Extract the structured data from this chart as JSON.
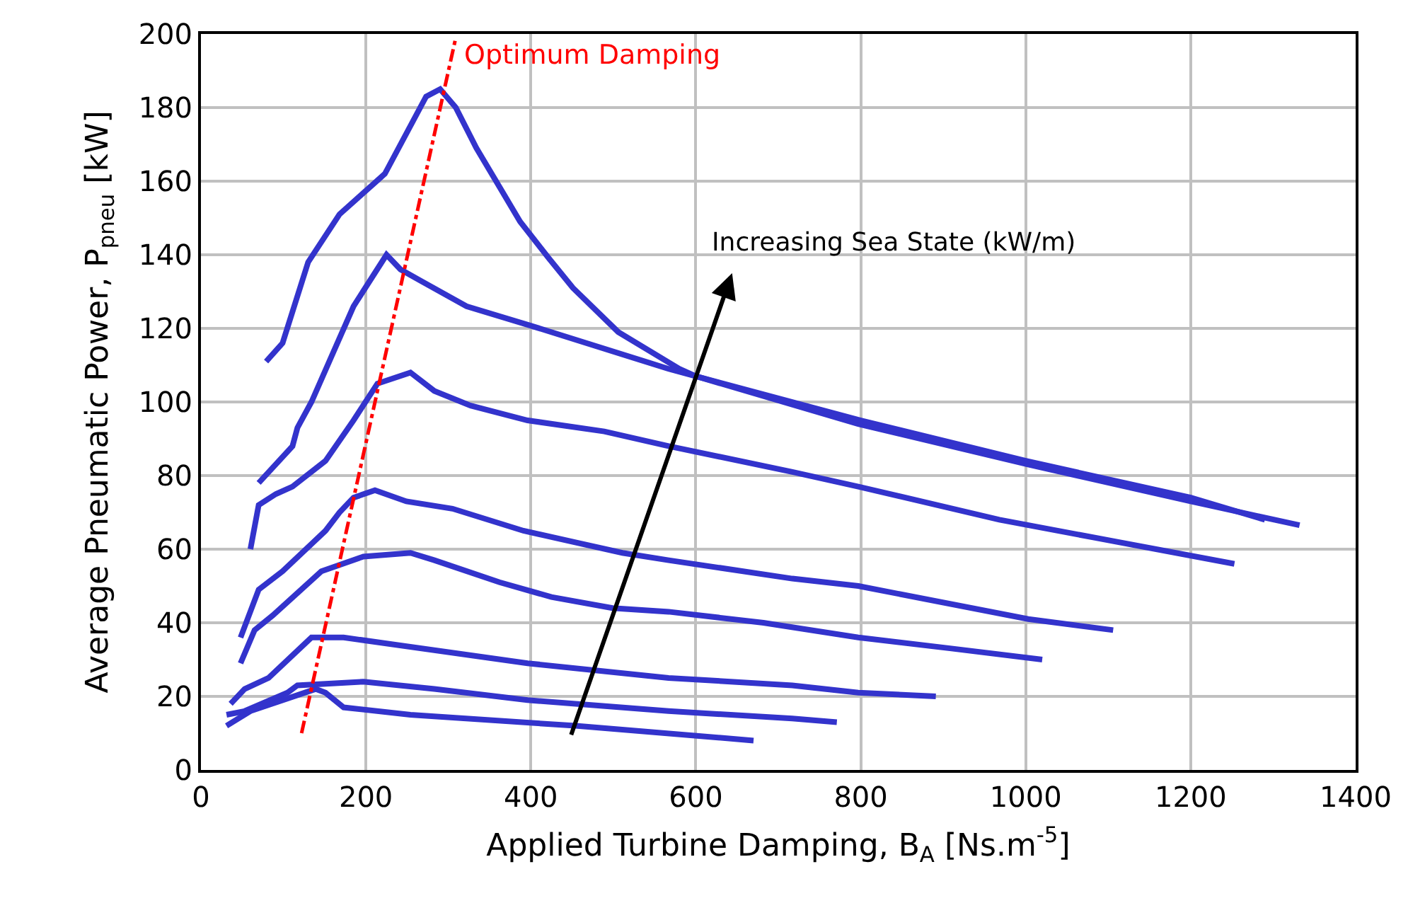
{
  "chart_data": {
    "type": "line",
    "xlabel": "Applied Turbine Damping, B$_{A}$ [Ns.m$^{-5}$]",
    "ylabel": "Average Pneumatic Power, P$_{pneu}$ [kW]",
    "xlim": [
      0,
      1400
    ],
    "xticks": [
      0,
      200,
      400,
      600,
      800,
      1000,
      1200,
      1400
    ],
    "ylim": [
      0,
      200
    ],
    "yticks": [
      0,
      20,
      40,
      60,
      80,
      100,
      120,
      140,
      160,
      180,
      200
    ],
    "grid": true,
    "legend": false,
    "marker": "none",
    "annotations": [
      "Increasing Sea State (kW/m)"
    ],
    "series": [
      {
        "color": "#3333cc",
        "x": [
          79,
          99,
          130,
          168,
          223,
          273,
          290,
          309,
          334,
          387,
          422,
          451,
          506,
          580,
          600,
          797,
          1003,
          1200,
          1332
        ],
        "values": [
          111,
          116,
          138,
          151,
          162,
          183,
          185,
          180,
          169,
          149,
          139,
          131,
          119,
          109,
          107,
          94,
          83,
          73,
          66.5
        ]
      },
      {
        "color": "#3333cc",
        "x": [
          70,
          111,
          117,
          134,
          185,
          225,
          242,
          266,
          322,
          396,
          567,
          600,
          800,
          1000,
          1200,
          1290
        ],
        "values": [
          78,
          88,
          93,
          100,
          126,
          140,
          136,
          133,
          126,
          121,
          109,
          107,
          95,
          84,
          74,
          68
        ]
      },
      {
        "color": "#3333cc",
        "x": [
          60,
          70,
          91,
          111,
          151,
          185,
          214,
          254,
          283,
          327,
          396,
          489,
          567,
          717,
          797,
          968,
          1253
        ],
        "values": [
          60,
          72,
          75,
          77,
          84,
          95,
          105,
          108,
          103,
          99,
          95,
          92,
          88,
          81,
          77,
          68,
          56
        ]
      },
      {
        "color": "#3333cc",
        "x": [
          48,
          70,
          99,
          151,
          168,
          185,
          211,
          249,
          305,
          391,
          511,
          567,
          717,
          797,
          1003,
          1106
        ],
        "values": [
          36,
          49,
          54,
          65,
          70,
          74,
          76,
          73,
          71,
          65,
          59,
          57,
          52,
          50,
          41,
          38
        ]
      },
      {
        "color": "#3333cc",
        "x": [
          48,
          65,
          87,
          146,
          197,
          254,
          283,
          362,
          425,
          499,
          567,
          682,
          797,
          910,
          1020
        ],
        "values": [
          29,
          38,
          42,
          54,
          58,
          59,
          57,
          51,
          47,
          44,
          43,
          40,
          36,
          33,
          30
        ]
      },
      {
        "color": "#3333cc",
        "x": [
          36,
          53,
          82,
          134,
          173,
          237,
          396,
          567,
          717,
          797,
          891
        ],
        "values": [
          18,
          22,
          25,
          36,
          36,
          34,
          29,
          25,
          23,
          21,
          20
        ]
      },
      {
        "color": "#3333cc",
        "x": [
          31,
          53,
          105,
          117,
          197,
          283,
          396,
          567,
          717,
          771
        ],
        "values": [
          15,
          16,
          21,
          23,
          24,
          22,
          19,
          16,
          14,
          13
        ]
      },
      {
        "color": "#3333cc",
        "x": [
          31,
          60,
          139,
          151,
          173,
          254,
          454,
          670
        ],
        "values": [
          12,
          16,
          22,
          21,
          17,
          15,
          12,
          8
        ]
      },
      {
        "name": "Optimum Damping",
        "color": "#ff0000",
        "line_style": "dashdot",
        "x": [
          122,
          309
        ],
        "values": [
          10,
          199
        ]
      }
    ]
  }
}
